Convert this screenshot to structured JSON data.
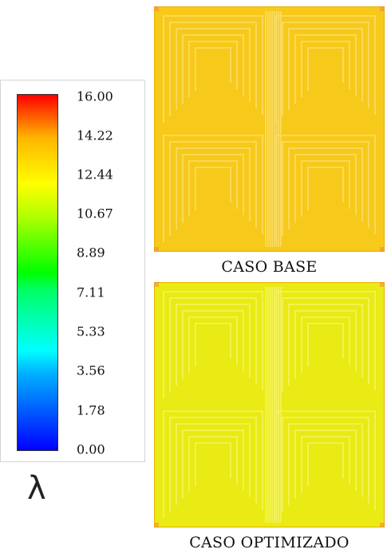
{
  "legend": {
    "ticks": [
      "16.00",
      "14.22",
      "12.44",
      "10.67",
      "8.89",
      "7.11",
      "5.33",
      "3.56",
      "1.78",
      "0.00"
    ],
    "variable": "λ",
    "colors": [
      "#0000ff",
      "#00ffff",
      "#00ff00",
      "#ffff00",
      "#ff0000"
    ]
  },
  "panels": [
    {
      "caption": "CASO BASE",
      "fill": "#f7c91a",
      "line": "#fbe070"
    },
    {
      "caption": "CASO OPTIMIZADO",
      "fill": "#eaea14",
      "line": "#f6f56a"
    }
  ]
}
